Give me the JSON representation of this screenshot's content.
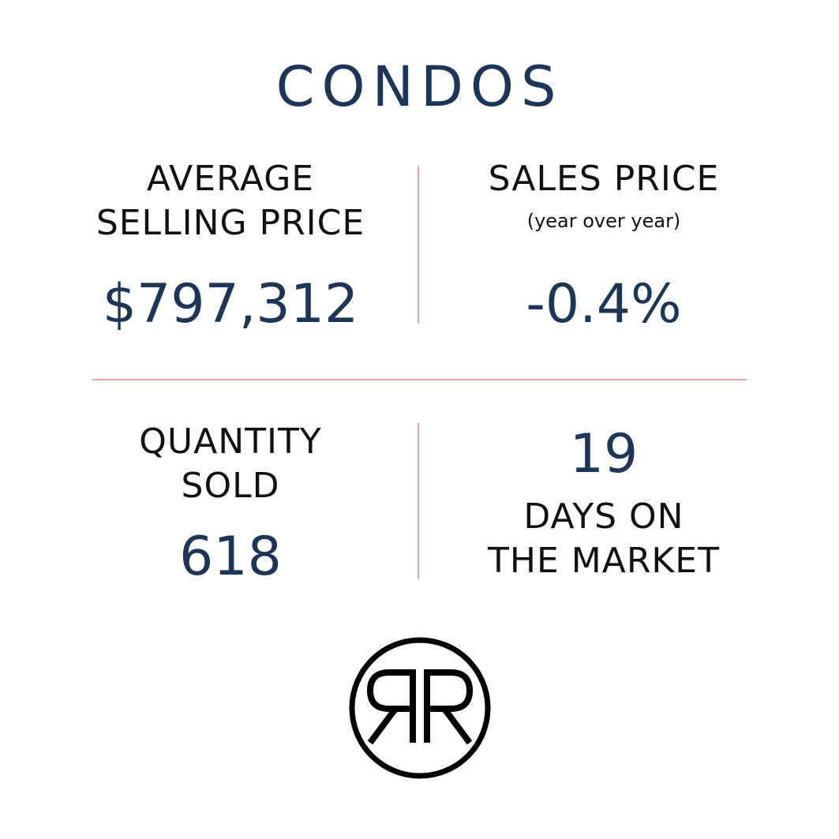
{
  "title": "CONDOS",
  "colors": {
    "accent": "#1d3557",
    "divider": "#e3a5aa",
    "text": "#111111"
  },
  "stats": {
    "avg_price": {
      "label_line1": "AVERAGE",
      "label_line2": "SELLING PRICE",
      "value": "$797,312"
    },
    "sales_price": {
      "label": "SALES PRICE",
      "sublabel": "(year over year)",
      "value": "-0.4%"
    },
    "quantity": {
      "label_line1": "QUANTITY",
      "label_line2": "SOLD",
      "value": "618"
    },
    "days": {
      "value": "19",
      "label_line1": "DAYS ON",
      "label_line2": "THE MARKET"
    }
  },
  "logo": {
    "icon": "double-r-monogram-icon",
    "letters": "RR"
  }
}
